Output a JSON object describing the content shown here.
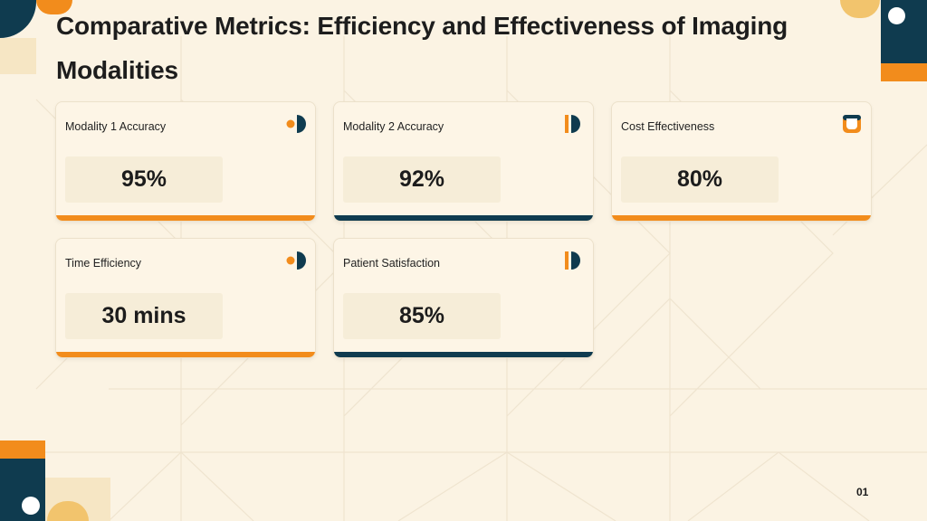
{
  "slide": {
    "title": "Comparative Metrics: Efficiency and Effectiveness of Imaging Modalities",
    "page_number": "01"
  },
  "colors": {
    "background": "#fbf3e3",
    "accent_orange": "#f28c1c",
    "accent_navy": "#0f3b4f",
    "accent_gold": "#f2c46d"
  },
  "cards": [
    {
      "label": "Modality 1 Accuracy",
      "value": "95%",
      "icon": "dot-half-circle-icon",
      "bar_color": "orange"
    },
    {
      "label": "Modality 2 Accuracy",
      "value": "92%",
      "icon": "bar-half-circle-icon",
      "bar_color": "navy"
    },
    {
      "label": "Cost Effectiveness",
      "value": "80%",
      "icon": "rounded-square-ring-icon",
      "bar_color": "orange"
    },
    {
      "label": "Time Efficiency",
      "value": "30 mins",
      "icon": "dot-half-circle-icon",
      "bar_color": "orange"
    },
    {
      "label": "Patient Satisfaction",
      "value": "85%",
      "icon": "bar-half-circle-icon",
      "bar_color": "navy"
    }
  ]
}
